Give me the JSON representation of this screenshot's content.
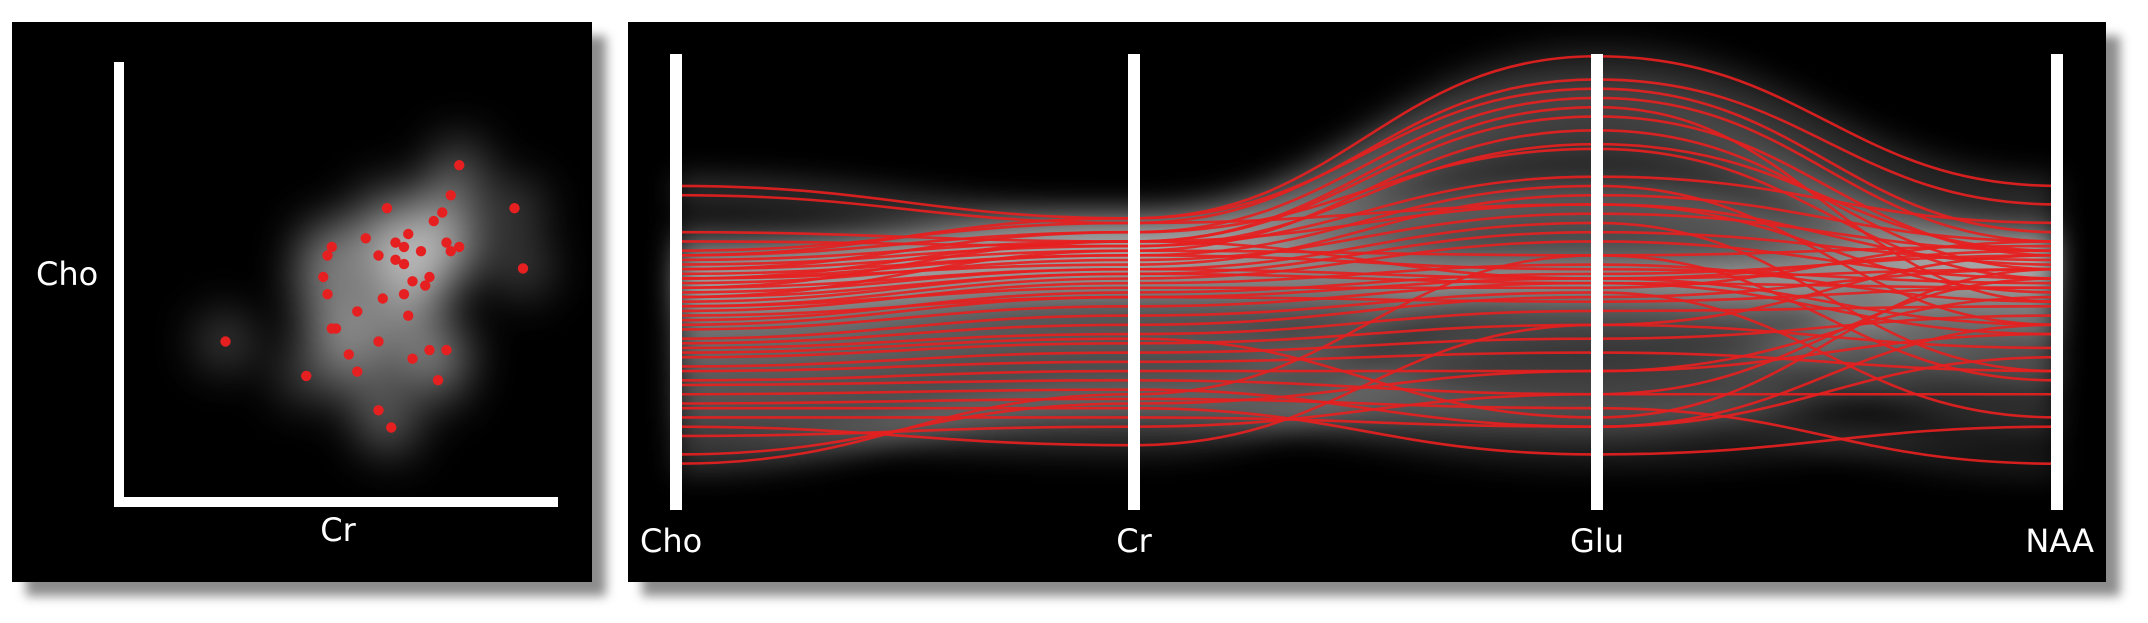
{
  "colors": {
    "background": "#000000",
    "axis": "#ffffff",
    "points": "#e62020",
    "density": "#d8d8d8"
  },
  "chart_data": [
    {
      "type": "scatter",
      "title": "",
      "xlabel": "Cr",
      "ylabel": "Cho",
      "xlim": [
        0,
        1
      ],
      "ylim": [
        0,
        1
      ],
      "grid": false,
      "background": "density heatmap (grayscale)",
      "points": [
        [
          0.77,
          0.76
        ],
        [
          0.9,
          0.66
        ],
        [
          0.75,
          0.69
        ],
        [
          0.73,
          0.65
        ],
        [
          0.71,
          0.63
        ],
        [
          0.6,
          0.66
        ],
        [
          0.55,
          0.59
        ],
        [
          0.65,
          0.6
        ],
        [
          0.74,
          0.58
        ],
        [
          0.75,
          0.56
        ],
        [
          0.77,
          0.57
        ],
        [
          0.92,
          0.52
        ],
        [
          0.64,
          0.57
        ],
        [
          0.62,
          0.54
        ],
        [
          0.58,
          0.55
        ],
        [
          0.64,
          0.53
        ],
        [
          0.68,
          0.56
        ],
        [
          0.46,
          0.55
        ],
        [
          0.47,
          0.57
        ],
        [
          0.45,
          0.5
        ],
        [
          0.7,
          0.5
        ],
        [
          0.69,
          0.48
        ],
        [
          0.66,
          0.49
        ],
        [
          0.59,
          0.45
        ],
        [
          0.64,
          0.46
        ],
        [
          0.53,
          0.42
        ],
        [
          0.46,
          0.46
        ],
        [
          0.65,
          0.41
        ],
        [
          0.47,
          0.38
        ],
        [
          0.48,
          0.38
        ],
        [
          0.58,
          0.35
        ],
        [
          0.7,
          0.33
        ],
        [
          0.51,
          0.32
        ],
        [
          0.66,
          0.31
        ],
        [
          0.74,
          0.33
        ],
        [
          0.53,
          0.28
        ],
        [
          0.72,
          0.26
        ],
        [
          0.41,
          0.27
        ],
        [
          0.22,
          0.35
        ],
        [
          0.58,
          0.19
        ],
        [
          0.61,
          0.15
        ],
        [
          0.62,
          0.58
        ]
      ]
    },
    {
      "type": "line",
      "subtype": "parallel-coordinates",
      "axes": [
        "Cho",
        "Cr",
        "Glu",
        "NAA"
      ],
      "ylim": [
        0,
        1
      ],
      "background": "density heatmap (grayscale)",
      "series": [
        {
          "values": [
            0.7,
            0.63,
            0.98,
            0.7
          ]
        },
        {
          "values": [
            0.68,
            0.62,
            0.93,
            0.66
          ]
        },
        {
          "values": [
            0.55,
            0.63,
            0.91,
            0.6
          ]
        },
        {
          "values": [
            0.52,
            0.6,
            0.89,
            0.58
          ]
        },
        {
          "values": [
            0.5,
            0.58,
            0.87,
            0.45
          ]
        },
        {
          "values": [
            0.48,
            0.58,
            0.85,
            0.55
          ]
        },
        {
          "values": [
            0.46,
            0.56,
            0.82,
            0.52
          ]
        },
        {
          "values": [
            0.55,
            0.6,
            0.78,
            0.5
          ]
        },
        {
          "values": [
            0.53,
            0.57,
            0.72,
            0.62
          ]
        },
        {
          "values": [
            0.51,
            0.55,
            0.7,
            0.4
          ]
        },
        {
          "values": [
            0.5,
            0.53,
            0.68,
            0.58
          ]
        },
        {
          "values": [
            0.56,
            0.62,
            0.66,
            0.47
          ]
        },
        {
          "values": [
            0.49,
            0.54,
            0.64,
            0.56
          ]
        },
        {
          "values": [
            0.47,
            0.52,
            0.62,
            0.3
          ]
        },
        {
          "values": [
            0.45,
            0.51,
            0.6,
            0.54
          ]
        },
        {
          "values": [
            0.44,
            0.5,
            0.58,
            0.5
          ]
        },
        {
          "values": [
            0.52,
            0.56,
            0.55,
            0.57
          ]
        },
        {
          "values": [
            0.43,
            0.49,
            0.53,
            0.45
          ]
        },
        {
          "values": [
            0.5,
            0.55,
            0.52,
            0.49
          ]
        },
        {
          "values": [
            0.41,
            0.47,
            0.51,
            0.55
          ]
        },
        {
          "values": [
            0.54,
            0.58,
            0.5,
            0.52
          ]
        },
        {
          "values": [
            0.4,
            0.46,
            0.5,
            0.4
          ]
        },
        {
          "values": [
            0.48,
            0.52,
            0.5,
            0.56
          ]
        },
        {
          "values": [
            0.46,
            0.51,
            0.49,
            0.48
          ]
        },
        {
          "values": [
            0.39,
            0.44,
            0.49,
            0.38
          ]
        },
        {
          "values": [
            0.44,
            0.48,
            0.48,
            0.58
          ]
        },
        {
          "values": [
            0.37,
            0.42,
            0.47,
            0.2
          ]
        },
        {
          "values": [
            0.36,
            0.4,
            0.46,
            0.52
          ]
        },
        {
          "values": [
            0.42,
            0.46,
            0.45,
            0.48
          ]
        },
        {
          "values": [
            0.35,
            0.38,
            0.43,
            0.44
          ]
        },
        {
          "values": [
            0.33,
            0.36,
            0.4,
            0.35
          ]
        },
        {
          "values": [
            0.31,
            0.34,
            0.37,
            0.42
          ]
        },
        {
          "values": [
            0.3,
            0.32,
            0.34,
            0.3
          ]
        },
        {
          "values": [
            0.28,
            0.3,
            0.3,
            0.38
          ]
        },
        {
          "values": [
            0.27,
            0.28,
            0.25,
            0.25
          ]
        },
        {
          "values": [
            0.25,
            0.26,
            0.18,
            0.33
          ]
        },
        {
          "values": [
            0.22,
            0.22,
            0.12,
            0.18
          ]
        },
        {
          "values": [
            0.2,
            0.2,
            0.18,
            0.4
          ]
        },
        {
          "values": [
            0.16,
            0.18,
            0.25,
            0.5
          ]
        },
        {
          "values": [
            0.18,
            0.14,
            0.4,
            0.55
          ]
        },
        {
          "values": [
            0.23,
            0.24,
            0.22,
            0.1
          ]
        },
        {
          "values": [
            0.34,
            0.37,
            0.2,
            0.52
          ]
        },
        {
          "values": [
            0.12,
            0.23,
            0.3,
            0.46
          ]
        },
        {
          "values": [
            0.1,
            0.25,
            0.55,
            0.28
          ]
        },
        {
          "values": [
            0.6,
            0.58,
            0.66,
            0.53
          ]
        },
        {
          "values": [
            0.58,
            0.57,
            0.79,
            0.56
          ]
        }
      ]
    }
  ]
}
